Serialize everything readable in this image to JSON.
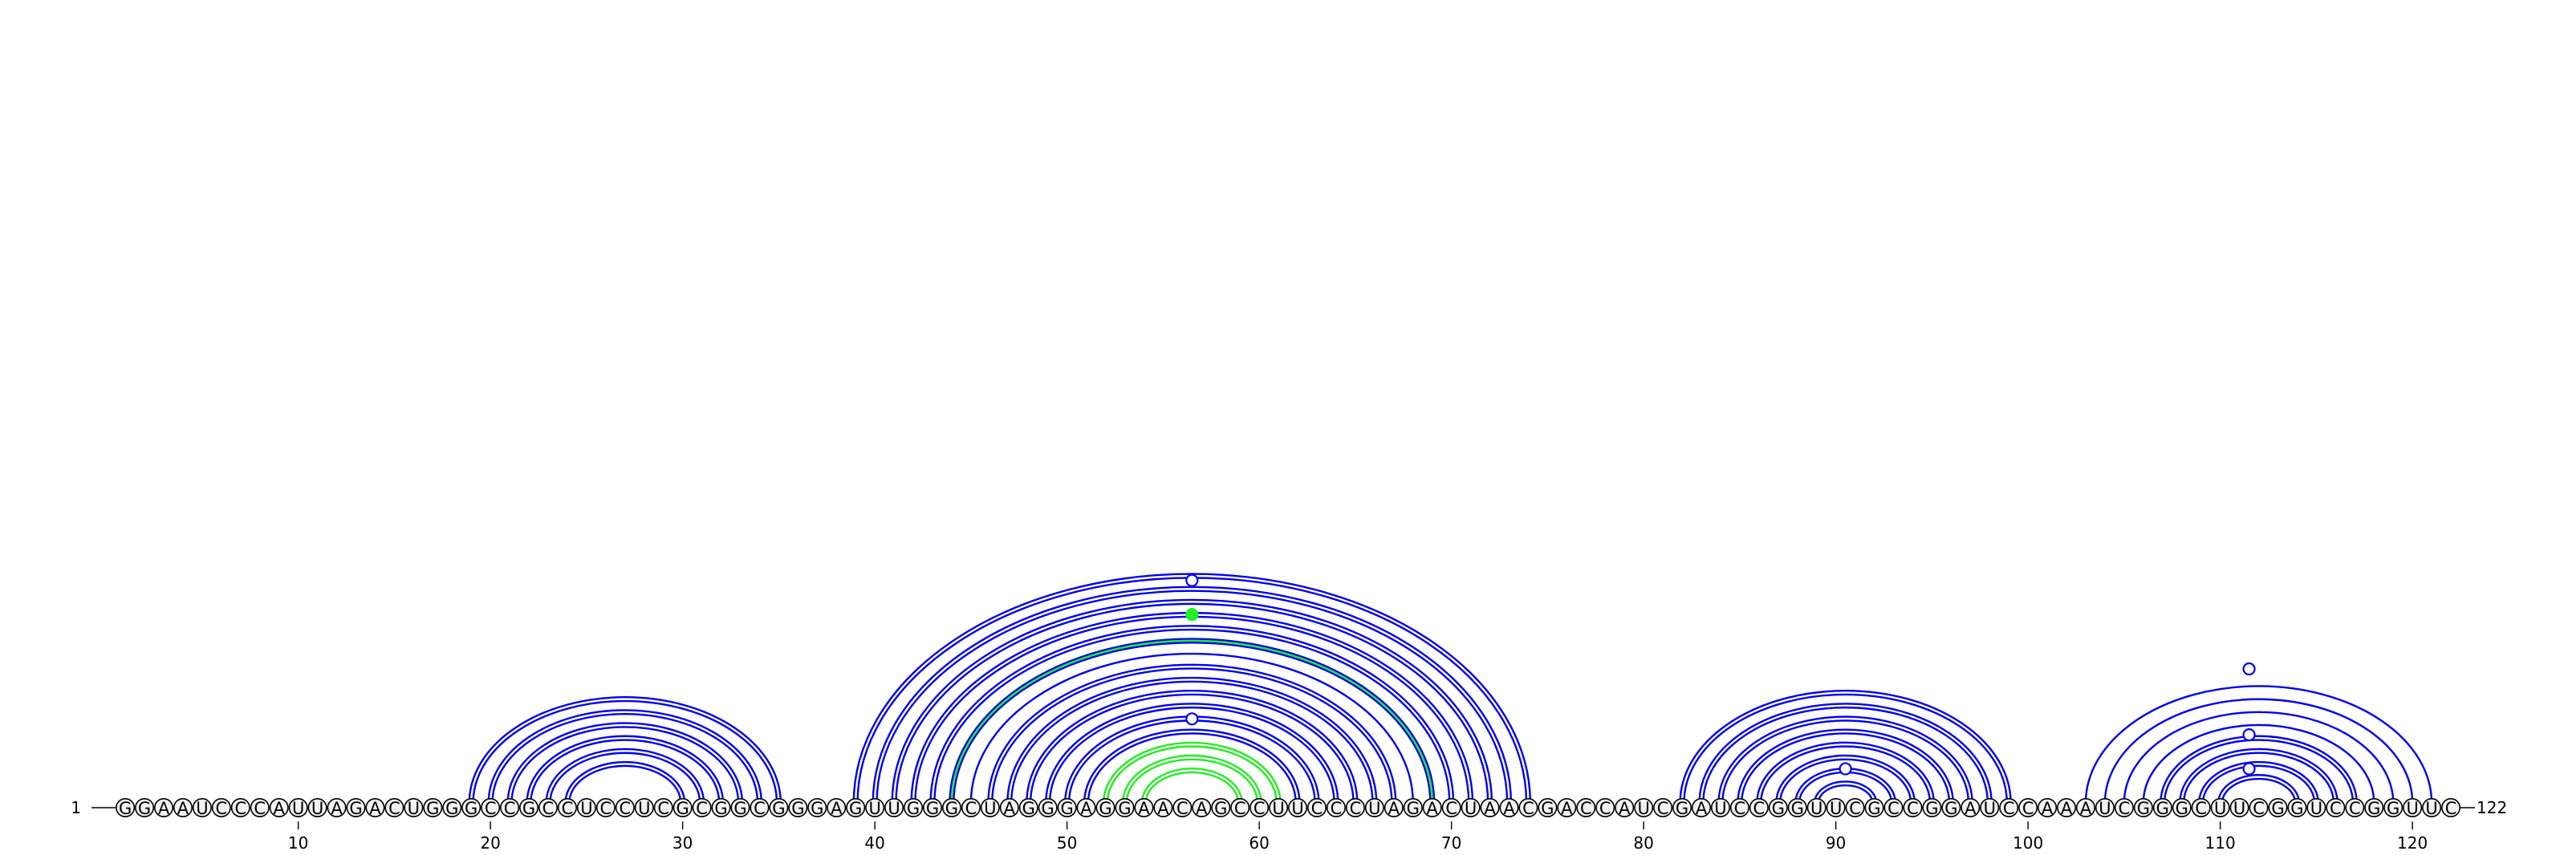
{
  "sequence": "GGAAUCCCAUUAGACUGGGCCGCCUCCUCGCGGCGGGAGUUGGGCUAGGGAGGAACAGCCUUCCCUAGACUAACGACCAUCGAUCCGGUUCGCCGGAUCCAAAUCGGGCUUCGGUCCGGUUC",
  "length": 122,
  "start_label": "1",
  "end_label": "122",
  "position_ticks": [
    10,
    20,
    30,
    40,
    50,
    60,
    70,
    80,
    90,
    100,
    110,
    120
  ],
  "colors": {
    "pair_blue": "#0000ee",
    "pair_green": "#22ee22",
    "marker_open_fill": "#ffffff",
    "marker_filled_fill": "#22ee22"
  },
  "helices": [
    {
      "color": "pair_blue",
      "double": true,
      "pairs": [
        [
          19,
          35
        ],
        [
          20,
          34
        ],
        [
          21,
          33
        ],
        [
          22,
          32
        ],
        [
          23,
          31
        ],
        [
          24,
          30
        ]
      ]
    },
    {
      "color": "pair_blue",
      "double": true,
      "pairs": [
        [
          39,
          74
        ],
        [
          40,
          73
        ],
        [
          41,
          72
        ],
        [
          42,
          71
        ],
        [
          43,
          70
        ],
        [
          44,
          69
        ],
        [
          46,
          67
        ],
        [
          47,
          66
        ],
        [
          48,
          65
        ],
        [
          49,
          64
        ],
        [
          50,
          63
        ],
        [
          51,
          62
        ]
      ]
    },
    {
      "color": "pair_blue",
      "double": false,
      "pairs": [
        [
          45,
          68
        ]
      ]
    },
    {
      "color": "pair_green",
      "double": true,
      "pairs": [
        [
          52,
          61
        ],
        [
          53,
          60
        ],
        [
          54,
          59
        ]
      ]
    },
    {
      "color": "pair_green",
      "double": false,
      "pairs": [
        [
          44,
          69
        ]
      ]
    },
    {
      "color": "pair_blue",
      "double": true,
      "pairs": [
        [
          82,
          99
        ],
        [
          83,
          98
        ],
        [
          84,
          97
        ],
        [
          85,
          96
        ],
        [
          86,
          95
        ],
        [
          87,
          94
        ],
        [
          88,
          93
        ],
        [
          89,
          92
        ]
      ]
    },
    {
      "color": "pair_blue",
      "double": false,
      "pairs": [
        [
          103,
          121
        ],
        [
          104,
          120
        ],
        [
          105,
          119
        ],
        [
          106,
          118
        ]
      ]
    },
    {
      "color": "pair_blue",
      "double": true,
      "pairs": [
        [
          107,
          117
        ],
        [
          108,
          116
        ],
        [
          109,
          115
        ],
        [
          110,
          114
        ]
      ]
    }
  ],
  "markers": [
    {
      "position": 56.5,
      "height": 0.98,
      "style": "open"
    },
    {
      "position": 56.5,
      "height": 0.83,
      "style": "filled"
    },
    {
      "position": 56.5,
      "height": 0.37,
      "style": "open"
    },
    {
      "position": 90.5,
      "height": 0.15,
      "style": "open"
    },
    {
      "position": 111.5,
      "height": 0.59,
      "style": "open"
    },
    {
      "position": 111.5,
      "height": 0.3,
      "style": "open"
    },
    {
      "position": 111.5,
      "height": 0.15,
      "style": "open"
    }
  ]
}
